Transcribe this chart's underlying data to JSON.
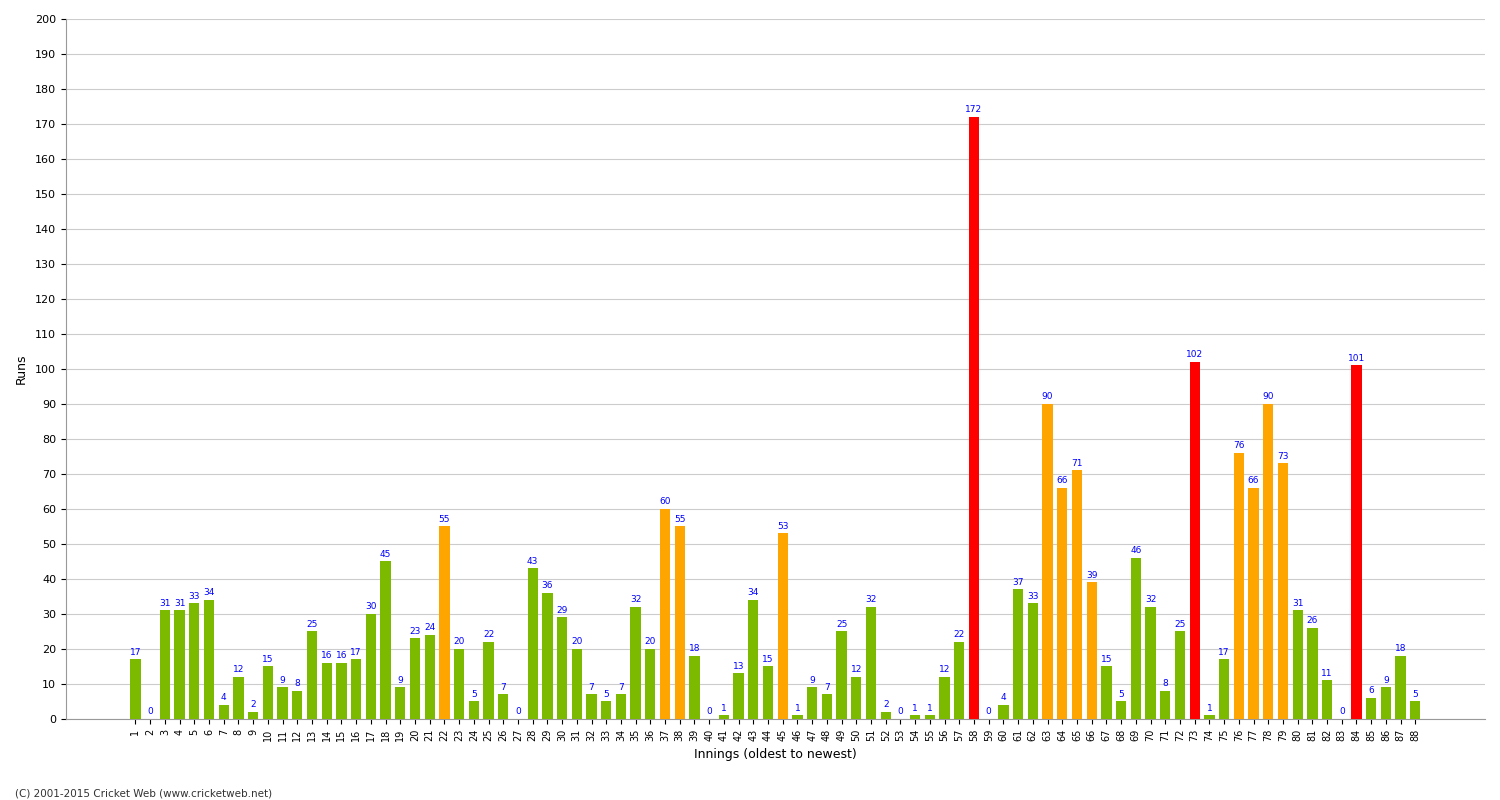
{
  "title": "",
  "ylabel": "Runs",
  "xlabel": "Innings (oldest to newest)",
  "footer": "(C) 2001-2015 Cricket Web (www.cricketweb.net)",
  "ylim": [
    0,
    200
  ],
  "yticks": [
    0,
    10,
    20,
    30,
    40,
    50,
    60,
    70,
    80,
    90,
    100,
    110,
    120,
    130,
    140,
    150,
    160,
    170,
    180,
    190,
    200
  ],
  "innings": [
    1,
    2,
    3,
    4,
    5,
    6,
    7,
    8,
    9,
    10,
    11,
    12,
    13,
    14,
    15,
    16,
    17,
    18,
    19,
    20,
    21,
    22,
    23,
    24,
    25,
    26,
    27,
    28,
    29,
    30,
    31,
    32,
    33,
    34,
    35,
    36,
    37,
    38,
    39,
    40,
    41,
    42,
    43,
    44,
    45,
    46,
    47,
    48,
    49,
    50,
    51,
    52,
    53,
    54,
    55,
    56,
    57,
    58,
    59,
    60,
    61,
    62,
    63,
    64,
    65,
    66,
    67,
    68,
    69,
    70,
    71,
    72,
    73,
    74,
    75,
    76,
    77,
    78,
    79,
    80,
    81,
    82,
    83,
    84,
    85,
    86,
    87,
    88
  ],
  "scores": [
    17,
    0,
    31,
    31,
    33,
    34,
    4,
    12,
    2,
    15,
    9,
    8,
    25,
    16,
    16,
    17,
    30,
    45,
    9,
    23,
    24,
    55,
    20,
    5,
    22,
    7,
    0,
    43,
    36,
    29,
    20,
    7,
    5,
    7,
    32,
    20,
    60,
    55,
    18,
    0,
    1,
    13,
    34,
    15,
    53,
    1,
    9,
    7,
    25,
    12,
    32,
    2,
    0,
    1,
    1,
    12,
    22,
    172,
    0,
    4,
    37,
    33,
    90,
    66,
    71,
    39,
    15,
    5,
    46,
    32,
    8,
    25,
    102,
    1,
    17,
    76,
    66,
    90,
    73,
    31,
    26,
    11,
    0,
    101,
    6,
    9,
    18,
    5
  ],
  "colors": [
    "#7cba00",
    "#7cba00",
    "#7cba00",
    "#7cba00",
    "#7cba00",
    "#7cba00",
    "#7cba00",
    "#7cba00",
    "#7cba00",
    "#7cba00",
    "#7cba00",
    "#7cba00",
    "#7cba00",
    "#7cba00",
    "#7cba00",
    "#7cba00",
    "#7cba00",
    "#7cba00",
    "#7cba00",
    "#7cba00",
    "#7cba00",
    "orange",
    "#7cba00",
    "#7cba00",
    "#7cba00",
    "#7cba00",
    "#7cba00",
    "#7cba00",
    "#7cba00",
    "#7cba00",
    "#7cba00",
    "#7cba00",
    "#7cba00",
    "#7cba00",
    "#7cba00",
    "#7cba00",
    "orange",
    "orange",
    "#7cba00",
    "#7cba00",
    "#7cba00",
    "#7cba00",
    "#7cba00",
    "#7cba00",
    "orange",
    "#7cba00",
    "#7cba00",
    "#7cba00",
    "#7cba00",
    "#7cba00",
    "#7cba00",
    "#7cba00",
    "#7cba00",
    "#7cba00",
    "#7cba00",
    "#7cba00",
    "#7cba00",
    "red",
    "#7cba00",
    "#7cba00",
    "#7cba00",
    "#7cba00",
    "orange",
    "orange",
    "orange",
    "orange",
    "#7cba00",
    "#7cba00",
    "#7cba00",
    "#7cba00",
    "#7cba00",
    "#7cba00",
    "red",
    "#7cba00",
    "#7cba00",
    "orange",
    "orange",
    "orange",
    "orange",
    "#7cba00",
    "#7cba00",
    "#7cba00",
    "#7cba00",
    "red",
    "#7cba00",
    "#7cba00",
    "#7cba00",
    "#7cba00"
  ],
  "background_color": "#ffffff",
  "grid_color": "#cccccc",
  "label_color": "blue",
  "label_fontsize": 6.5,
  "bar_width": 0.7
}
